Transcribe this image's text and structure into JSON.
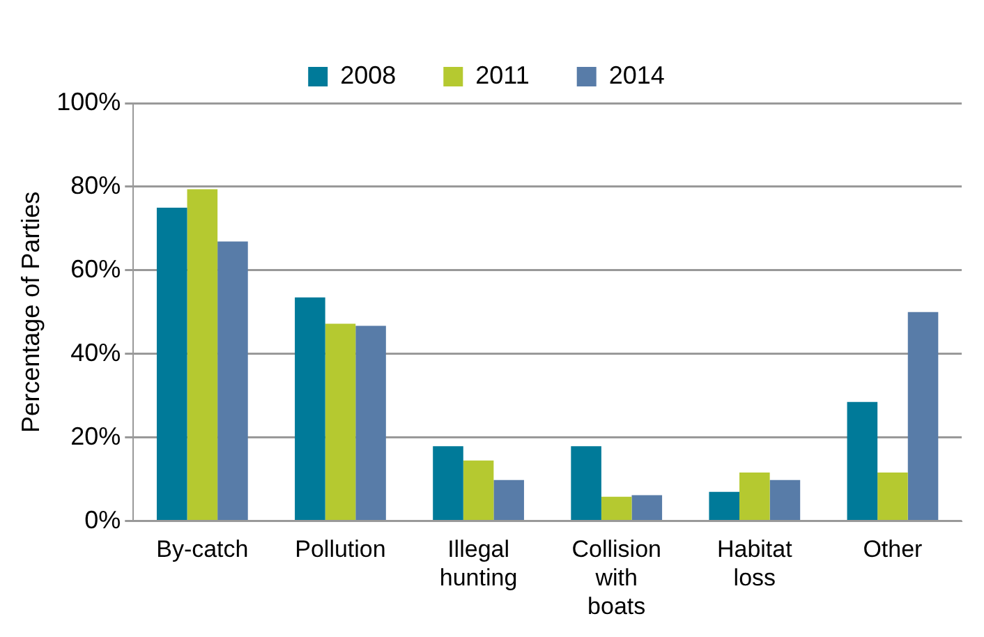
{
  "chart_data": {
    "type": "bar",
    "ylabel": "Percentage of Parties",
    "categories": [
      "By-catch",
      "Pollution",
      "Illegal hunting",
      "Collision with boats",
      "Habitat loss",
      "Other"
    ],
    "series": [
      {
        "name": "2008",
        "color": "#007a99",
        "values": [
          75,
          53.5,
          17.9,
          17.9,
          7,
          28.5
        ]
      },
      {
        "name": "2011",
        "color": "#b5c930",
        "values": [
          79.4,
          47.2,
          14.5,
          5.8,
          11.6,
          11.6
        ]
      },
      {
        "name": "2014",
        "color": "#587ca8",
        "values": [
          66.9,
          46.7,
          9.8,
          6.2,
          9.8,
          50
        ]
      }
    ],
    "ylim": [
      0,
      100
    ],
    "yticks": [
      {
        "value": 0,
        "label": "0%"
      },
      {
        "value": 20,
        "label": "20%"
      },
      {
        "value": 40,
        "label": "40%"
      },
      {
        "value": 60,
        "label": "60%"
      },
      {
        "value": 80,
        "label": "80%"
      },
      {
        "value": 100,
        "label": "100%"
      }
    ],
    "grid": "y",
    "legend": "top"
  }
}
